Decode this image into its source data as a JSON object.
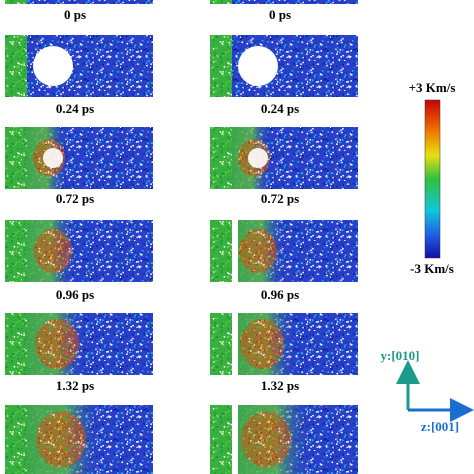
{
  "figure": {
    "columns": [
      {
        "labels": [
          "0 ps",
          "0.24 ps",
          "0.72 ps",
          "0.96 ps",
          "1.32 ps"
        ]
      },
      {
        "labels": [
          "0 ps",
          "0.24 ps",
          "0.72 ps",
          "0.96 ps",
          "1.32 ps"
        ]
      }
    ]
  },
  "colorbar": {
    "max_label": "+3 Km/s",
    "min_label": "-3 Km/s"
  },
  "axes": {
    "y_label": "y:[010]",
    "z_label": "z:[001]"
  }
}
